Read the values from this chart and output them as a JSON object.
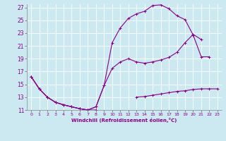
{
  "xlabel": "Windchill (Refroidissement éolien,°C)",
  "ylabel": "",
  "xlim": [
    -0.5,
    23.5
  ],
  "ylim": [
    11,
    27.5
  ],
  "yticks": [
    11,
    13,
    15,
    17,
    19,
    21,
    23,
    25,
    27
  ],
  "xticks": [
    0,
    1,
    2,
    3,
    4,
    5,
    6,
    7,
    8,
    9,
    10,
    11,
    12,
    13,
    14,
    15,
    16,
    17,
    18,
    19,
    20,
    21,
    22,
    23
  ],
  "bg_color": "#cce8f0",
  "grid_color": "#ffffff",
  "line_color": "#880088",
  "line1_x": [
    0,
    1,
    2,
    3,
    4,
    5,
    6,
    7,
    8
  ],
  "line1_y": [
    16.2,
    14.3,
    13.0,
    12.2,
    11.8,
    11.5,
    11.2,
    11.0,
    11.0
  ],
  "line2_x": [
    13,
    14,
    15,
    16,
    17,
    18,
    19,
    20,
    21,
    22,
    23
  ],
  "line2_y": [
    13.0,
    13.1,
    13.3,
    13.5,
    13.7,
    13.9,
    14.0,
    14.2,
    14.3,
    14.3,
    14.3
  ],
  "line3_x": [
    0,
    1,
    2,
    3,
    4,
    5,
    6,
    7,
    8,
    9,
    10,
    11,
    12,
    13,
    14,
    15,
    16,
    17,
    18,
    19,
    20,
    21
  ],
  "line3_y": [
    16.2,
    14.3,
    13.0,
    12.2,
    11.8,
    11.5,
    11.2,
    11.0,
    11.5,
    14.8,
    17.5,
    18.5,
    19.0,
    18.5,
    18.3,
    18.5,
    18.8,
    19.2,
    20.0,
    21.5,
    22.8,
    22.0
  ],
  "line4_x": [
    0,
    1,
    2,
    3,
    4,
    5,
    6,
    7,
    8,
    9,
    10,
    11,
    12,
    13,
    14,
    15,
    16,
    17,
    18,
    19,
    20,
    21,
    22
  ],
  "line4_y": [
    16.2,
    14.3,
    13.0,
    12.2,
    11.8,
    11.5,
    11.2,
    11.0,
    11.5,
    14.8,
    21.5,
    23.8,
    25.3,
    26.0,
    26.4,
    27.3,
    27.4,
    26.8,
    25.7,
    25.1,
    22.7,
    19.3,
    19.3
  ],
  "marker": "+",
  "markersize": 3,
  "linewidth": 0.8
}
